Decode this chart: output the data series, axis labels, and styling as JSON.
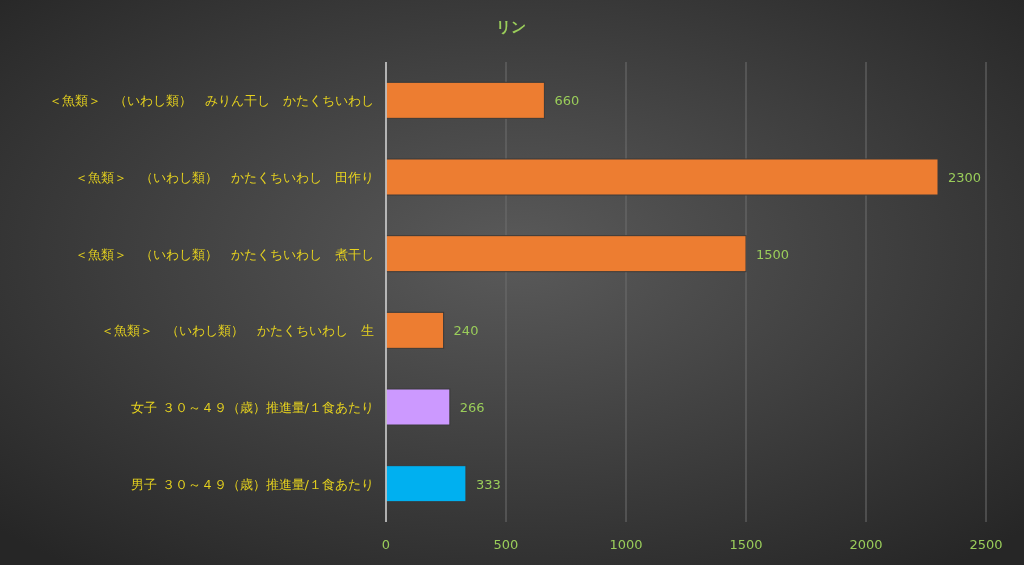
{
  "chart_data": {
    "type": "bar",
    "orientation": "horizontal",
    "title": "リン",
    "categories": [
      "＜魚類＞　（いわし類）　みりん干し　かたくちいわし",
      "＜魚類＞　（いわし類）　かたくちいわし　田作り",
      "＜魚類＞　（いわし類）　かたくちいわし　煮干し",
      "＜魚類＞　（いわし類）　かたくちいわし　生",
      "女子 ３０～４９（歳）推進量/１食あたり",
      "男子 ３０～４９（歳）推進量/１食あたり"
    ],
    "values": [
      660,
      2300,
      1500,
      240,
      266,
      333
    ],
    "colors": [
      "#ed7d31",
      "#ed7d31",
      "#ed7d31",
      "#ed7d31",
      "#cc99ff",
      "#00b0f0"
    ],
    "xlim": [
      0,
      2500
    ],
    "xticks": [
      0,
      500,
      1000,
      1500,
      2000,
      2500
    ],
    "grid": "x",
    "data_labels": true
  }
}
